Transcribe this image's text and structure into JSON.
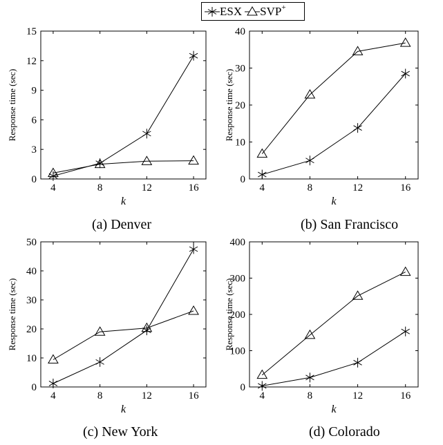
{
  "legend": {
    "esx_label": "ESX",
    "svp_label": "SVP",
    "svp_sup": "+"
  },
  "chart_data": [
    {
      "type": "line",
      "caption": "(a) Denver",
      "xlabel": "k",
      "ylabel": "Response time (sec)",
      "x": [
        4,
        8,
        12,
        16
      ],
      "xticks": [
        4,
        8,
        12,
        16
      ],
      "ylim": [
        0,
        15
      ],
      "yticks": [
        0,
        3,
        6,
        9,
        12,
        15
      ],
      "grid": false,
      "series": [
        {
          "name": "ESX",
          "marker": "asterisk",
          "values": [
            0.3,
            1.6,
            4.6,
            12.5
          ]
        },
        {
          "name": "SVP+",
          "marker": "triangle",
          "values": [
            0.6,
            1.5,
            1.8,
            1.85
          ]
        }
      ]
    },
    {
      "type": "line",
      "caption": "(b) San Francisco",
      "xlabel": "k",
      "ylabel": "Response time (sec)",
      "x": [
        4,
        8,
        12,
        16
      ],
      "xticks": [
        4,
        8,
        12,
        16
      ],
      "ylim": [
        0,
        40
      ],
      "yticks": [
        0,
        10,
        20,
        30,
        40
      ],
      "grid": false,
      "series": [
        {
          "name": "ESX",
          "marker": "asterisk",
          "values": [
            1.2,
            5.0,
            13.8,
            28.5
          ]
        },
        {
          "name": "SVP+",
          "marker": "triangle",
          "values": [
            6.8,
            22.8,
            34.5,
            36.8
          ]
        }
      ]
    },
    {
      "type": "line",
      "caption": "(c) New York",
      "xlabel": "k",
      "ylabel": "Response time (sec)",
      "x": [
        4,
        8,
        12,
        16
      ],
      "xticks": [
        4,
        8,
        12,
        16
      ],
      "ylim": [
        0,
        50
      ],
      "yticks": [
        0,
        10,
        20,
        30,
        40,
        50
      ],
      "grid": false,
      "series": [
        {
          "name": "ESX",
          "marker": "asterisk",
          "values": [
            1.2,
            8.6,
            19.5,
            47.5
          ]
        },
        {
          "name": "SVP+",
          "marker": "triangle",
          "values": [
            9.4,
            19.0,
            20.3,
            26.2
          ]
        }
      ]
    },
    {
      "type": "line",
      "caption": "(d) Colorado",
      "xlabel": "k",
      "ylabel": "Response time (sec)",
      "x": [
        4,
        8,
        12,
        16
      ],
      "xticks": [
        4,
        8,
        12,
        16
      ],
      "ylim": [
        0,
        400
      ],
      "yticks": [
        0,
        100,
        200,
        300,
        400
      ],
      "grid": false,
      "series": [
        {
          "name": "ESX",
          "marker": "asterisk",
          "values": [
            3,
            26,
            67,
            153
          ]
        },
        {
          "name": "SVP+",
          "marker": "triangle",
          "values": [
            33,
            143,
            251,
            317
          ]
        }
      ]
    }
  ]
}
